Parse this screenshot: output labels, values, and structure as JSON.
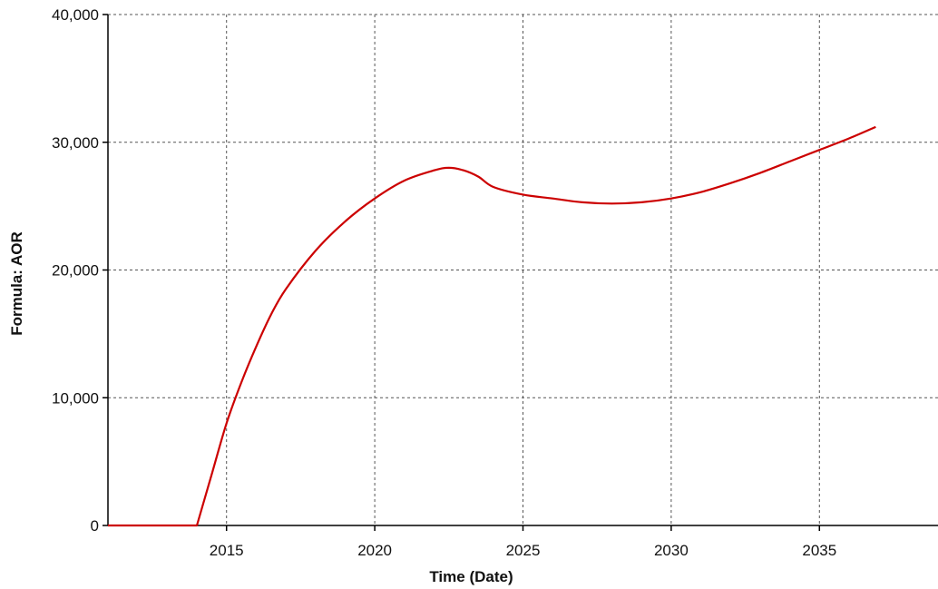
{
  "chart_data": {
    "type": "line",
    "title": "",
    "xlabel": "Time (Date)",
    "ylabel": "Formula: AOR",
    "xlim": [
      2011.0,
      2039.0
    ],
    "ylim": [
      0,
      40000
    ],
    "x_ticks": [
      2015,
      2020,
      2025,
      2030,
      2035
    ],
    "x_tick_labels": [
      "2015",
      "2020",
      "2025",
      "2030",
      "2035"
    ],
    "y_ticks": [
      0,
      10000,
      20000,
      30000,
      40000
    ],
    "y_tick_labels": [
      "0",
      "10,000",
      "20,000",
      "30,000",
      "40,000"
    ],
    "grid": true,
    "legend": "none",
    "series": [
      {
        "color": "#cc0000",
        "points": [
          [
            2011.0,
            0
          ],
          [
            2014.0,
            0
          ],
          [
            2014.5,
            4000
          ],
          [
            2015.0,
            8000
          ],
          [
            2015.5,
            11200
          ],
          [
            2016.0,
            14000
          ],
          [
            2016.5,
            16500
          ],
          [
            2017.0,
            18500
          ],
          [
            2018.0,
            21500
          ],
          [
            2019.0,
            23800
          ],
          [
            2020.0,
            25600
          ],
          [
            2021.0,
            27000
          ],
          [
            2022.0,
            27800
          ],
          [
            2022.5,
            28000
          ],
          [
            2023.0,
            27800
          ],
          [
            2023.5,
            27300
          ],
          [
            2024.0,
            26500
          ],
          [
            2025.0,
            25900
          ],
          [
            2026.0,
            25600
          ],
          [
            2027.0,
            25300
          ],
          [
            2028.0,
            25200
          ],
          [
            2029.0,
            25300
          ],
          [
            2030.0,
            25600
          ],
          [
            2031.0,
            26100
          ],
          [
            2032.0,
            26800
          ],
          [
            2033.0,
            27600
          ],
          [
            2034.0,
            28500
          ],
          [
            2035.0,
            29400
          ],
          [
            2036.0,
            30300
          ],
          [
            2036.9,
            31200
          ]
        ]
      }
    ]
  }
}
